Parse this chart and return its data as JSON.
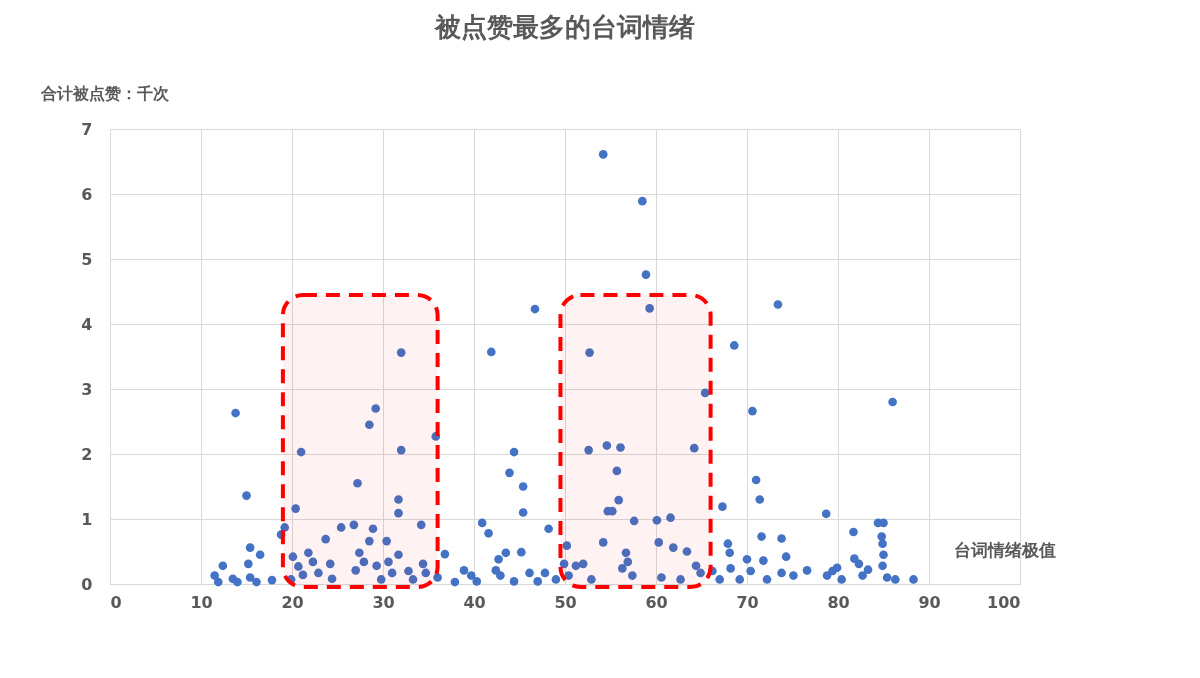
{
  "chart_data": {
    "type": "scatter",
    "title": "被点赞最多的台词情绪",
    "xlabel": "台词情绪极值",
    "ylabel": "合计被点赞：千次",
    "xlim": [
      0,
      100
    ],
    "xticks": [
      0,
      10,
      20,
      30,
      40,
      50,
      60,
      70,
      80,
      90,
      100
    ],
    "ylim": [
      0,
      7
    ],
    "yticks": [
      0,
      1,
      2,
      3,
      4,
      5,
      6,
      7
    ],
    "grid": true,
    "legend": false,
    "marker": "circle",
    "bands": [
      {
        "axis": "x",
        "from": 19,
        "to": 36,
        "label": null,
        "color": "#ff0000"
      },
      {
        "axis": "x",
        "from": 49.5,
        "to": 66,
        "label": null,
        "color": "#ff0000"
      }
    ],
    "series": [
      {
        "color": "#4472c4",
        "x": [
          13.8,
          15.0,
          15.4,
          16.5,
          11.5,
          12.4,
          11.9,
          13.5,
          14.0,
          15.2,
          15.4,
          16.1,
          17.8,
          19.2,
          18.8,
          20.4,
          21.0,
          20.1,
          20.7,
          21.2,
          21.8,
          22.3,
          22.9,
          19.9,
          23.7,
          24.2,
          24.4,
          25.4,
          26.8,
          27.2,
          27.4,
          27.0,
          27.9,
          28.5,
          28.5,
          29.2,
          28.9,
          29.3,
          29.8,
          30.4,
          30.6,
          31.0,
          31.7,
          31.7,
          32.0,
          32.0,
          31.7,
          32.8,
          33.3,
          34.2,
          34.4,
          34.7,
          35.8,
          36.0,
          36.8,
          37.9,
          38.9,
          39.7,
          40.3,
          40.9,
          41.6,
          41.9,
          42.4,
          42.7,
          42.9,
          43.5,
          43.9,
          44.4,
          44.4,
          45.4,
          45.4,
          45.2,
          46.1,
          46.7,
          47.0,
          47.8,
          48.2,
          49.0,
          50.2,
          49.9,
          50.4,
          51.2,
          52.0,
          52.6,
          52.7,
          52.9,
          54.2,
          54.2,
          54.6,
          54.7,
          55.2,
          55.7,
          55.9,
          56.1,
          56.3,
          56.7,
          56.9,
          57.4,
          57.6,
          58.5,
          58.9,
          59.3,
          60.1,
          60.3,
          60.6,
          61.6,
          61.9,
          62.7,
          63.4,
          64.2,
          64.4,
          65.4,
          64.9,
          66.2,
          67.0,
          67.3,
          67.9,
          68.1,
          68.2,
          68.6,
          69.2,
          70.6,
          71.0,
          71.4,
          71.6,
          71.8,
          70.0,
          70.4,
          72.2,
          73.4,
          73.8,
          74.3,
          73.8,
          75.1,
          76.6,
          78.7,
          78.8,
          79.4,
          79.9,
          80.4,
          81.7,
          81.8,
          82.3,
          82.7,
          83.3,
          84.4,
          85.0,
          84.8,
          84.9,
          85.0,
          84.9,
          86.0,
          85.4,
          86.3,
          88.3
        ],
        "values": [
          2.63,
          1.36,
          0.56,
          0.45,
          0.13,
          0.28,
          0.03,
          0.08,
          0.03,
          0.31,
          0.1,
          0.03,
          0.06,
          0.87,
          0.76,
          1.16,
          2.03,
          0.42,
          0.27,
          0.14,
          0.48,
          0.34,
          0.17,
          0.07,
          0.69,
          0.31,
          0.08,
          0.87,
          0.91,
          1.55,
          0.48,
          0.21,
          0.34,
          0.66,
          2.45,
          2.7,
          0.85,
          0.28,
          0.07,
          0.66,
          0.34,
          0.17,
          1.09,
          1.3,
          2.06,
          3.56,
          0.45,
          0.2,
          0.07,
          0.91,
          0.31,
          0.17,
          2.27,
          0.1,
          0.46,
          0.03,
          0.21,
          0.13,
          0.04,
          0.94,
          0.78,
          3.57,
          0.21,
          0.38,
          0.13,
          0.48,
          1.71,
          2.03,
          0.04,
          1.5,
          1.1,
          0.49,
          0.17,
          4.23,
          0.04,
          0.17,
          0.85,
          0.07,
          0.59,
          0.31,
          0.13,
          0.28,
          0.31,
          2.06,
          3.56,
          0.07,
          0.64,
          6.61,
          2.13,
          1.12,
          1.12,
          1.74,
          1.29,
          2.1,
          0.24,
          0.48,
          0.34,
          0.13,
          0.97,
          5.89,
          4.76,
          4.24,
          0.98,
          0.64,
          0.1,
          1.02,
          0.56,
          0.07,
          0.5,
          2.09,
          0.28,
          2.94,
          0.17,
          0.2,
          0.07,
          1.19,
          0.62,
          0.48,
          0.24,
          3.67,
          0.07,
          2.66,
          1.6,
          1.3,
          0.73,
          0.36,
          0.38,
          0.2,
          0.07,
          4.3,
          0.7,
          0.42,
          0.17,
          0.13,
          0.21,
          1.08,
          0.13,
          0.2,
          0.25,
          0.07,
          0.8,
          0.39,
          0.31,
          0.13,
          0.22,
          0.94,
          0.94,
          0.73,
          0.62,
          0.45,
          0.28,
          2.8,
          0.1,
          0.07,
          0.07
        ]
      }
    ]
  }
}
